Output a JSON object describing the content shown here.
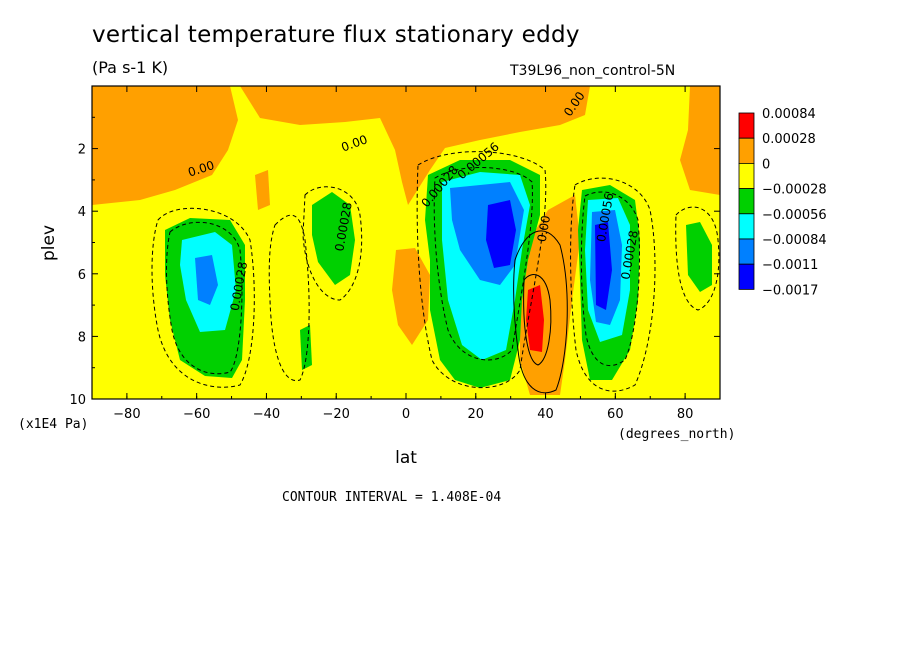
{
  "header": {
    "title": "vertical temperature flux stationary eddy",
    "units": "(Pa s-1 K)",
    "run_label": "T39L96_non_control-5N"
  },
  "footer": {
    "contour_interval": "CONTOUR INTERVAL = 1.408E-04"
  },
  "chart_data": {
    "type": "contour",
    "xlabel": "lat",
    "ylabel": "plev",
    "x_units": "(degrees_north)",
    "y_units": "(x1E4 Pa)",
    "xlim": [
      -90,
      90
    ],
    "ylim": [
      10,
      0
    ],
    "x_ticks": [
      -80,
      -60,
      -40,
      -20,
      0,
      20,
      40,
      60,
      80
    ],
    "y_ticks": [
      2,
      4,
      6,
      8,
      10
    ],
    "legend": {
      "placement": "right",
      "labels": [
        "0.00084",
        "0.00028",
        "0",
        "-0.00028",
        "-0.00056",
        "-0.00084",
        "-0.0011",
        "-0.0017"
      ],
      "colors": [
        "#ff0000",
        "#ffa000",
        "#ffff00",
        "#00d000",
        "#00ffff",
        "#0080ff",
        "#0000ff"
      ]
    },
    "contour_labels": [
      "0.00",
      "0.00",
      "0.00",
      "0.00028",
      "0.00028",
      "0.00028",
      "0.00056",
      "0.00",
      "0.00028",
      "0.00056"
    ],
    "features": [
      {
        "lat": -58,
        "plev": 6.2,
        "value": -0.0009
      },
      {
        "lat": -25,
        "plev": 4.5,
        "value": -0.0005
      },
      {
        "lat": 26,
        "plev": 4.5,
        "value": -0.0016
      },
      {
        "lat": 35,
        "plev": 7.5,
        "value": 0.0009
      },
      {
        "lat": 54,
        "plev": 5.8,
        "value": -0.0015
      },
      {
        "lat": 83,
        "plev": 5.8,
        "value": -0.0005
      }
    ]
  }
}
